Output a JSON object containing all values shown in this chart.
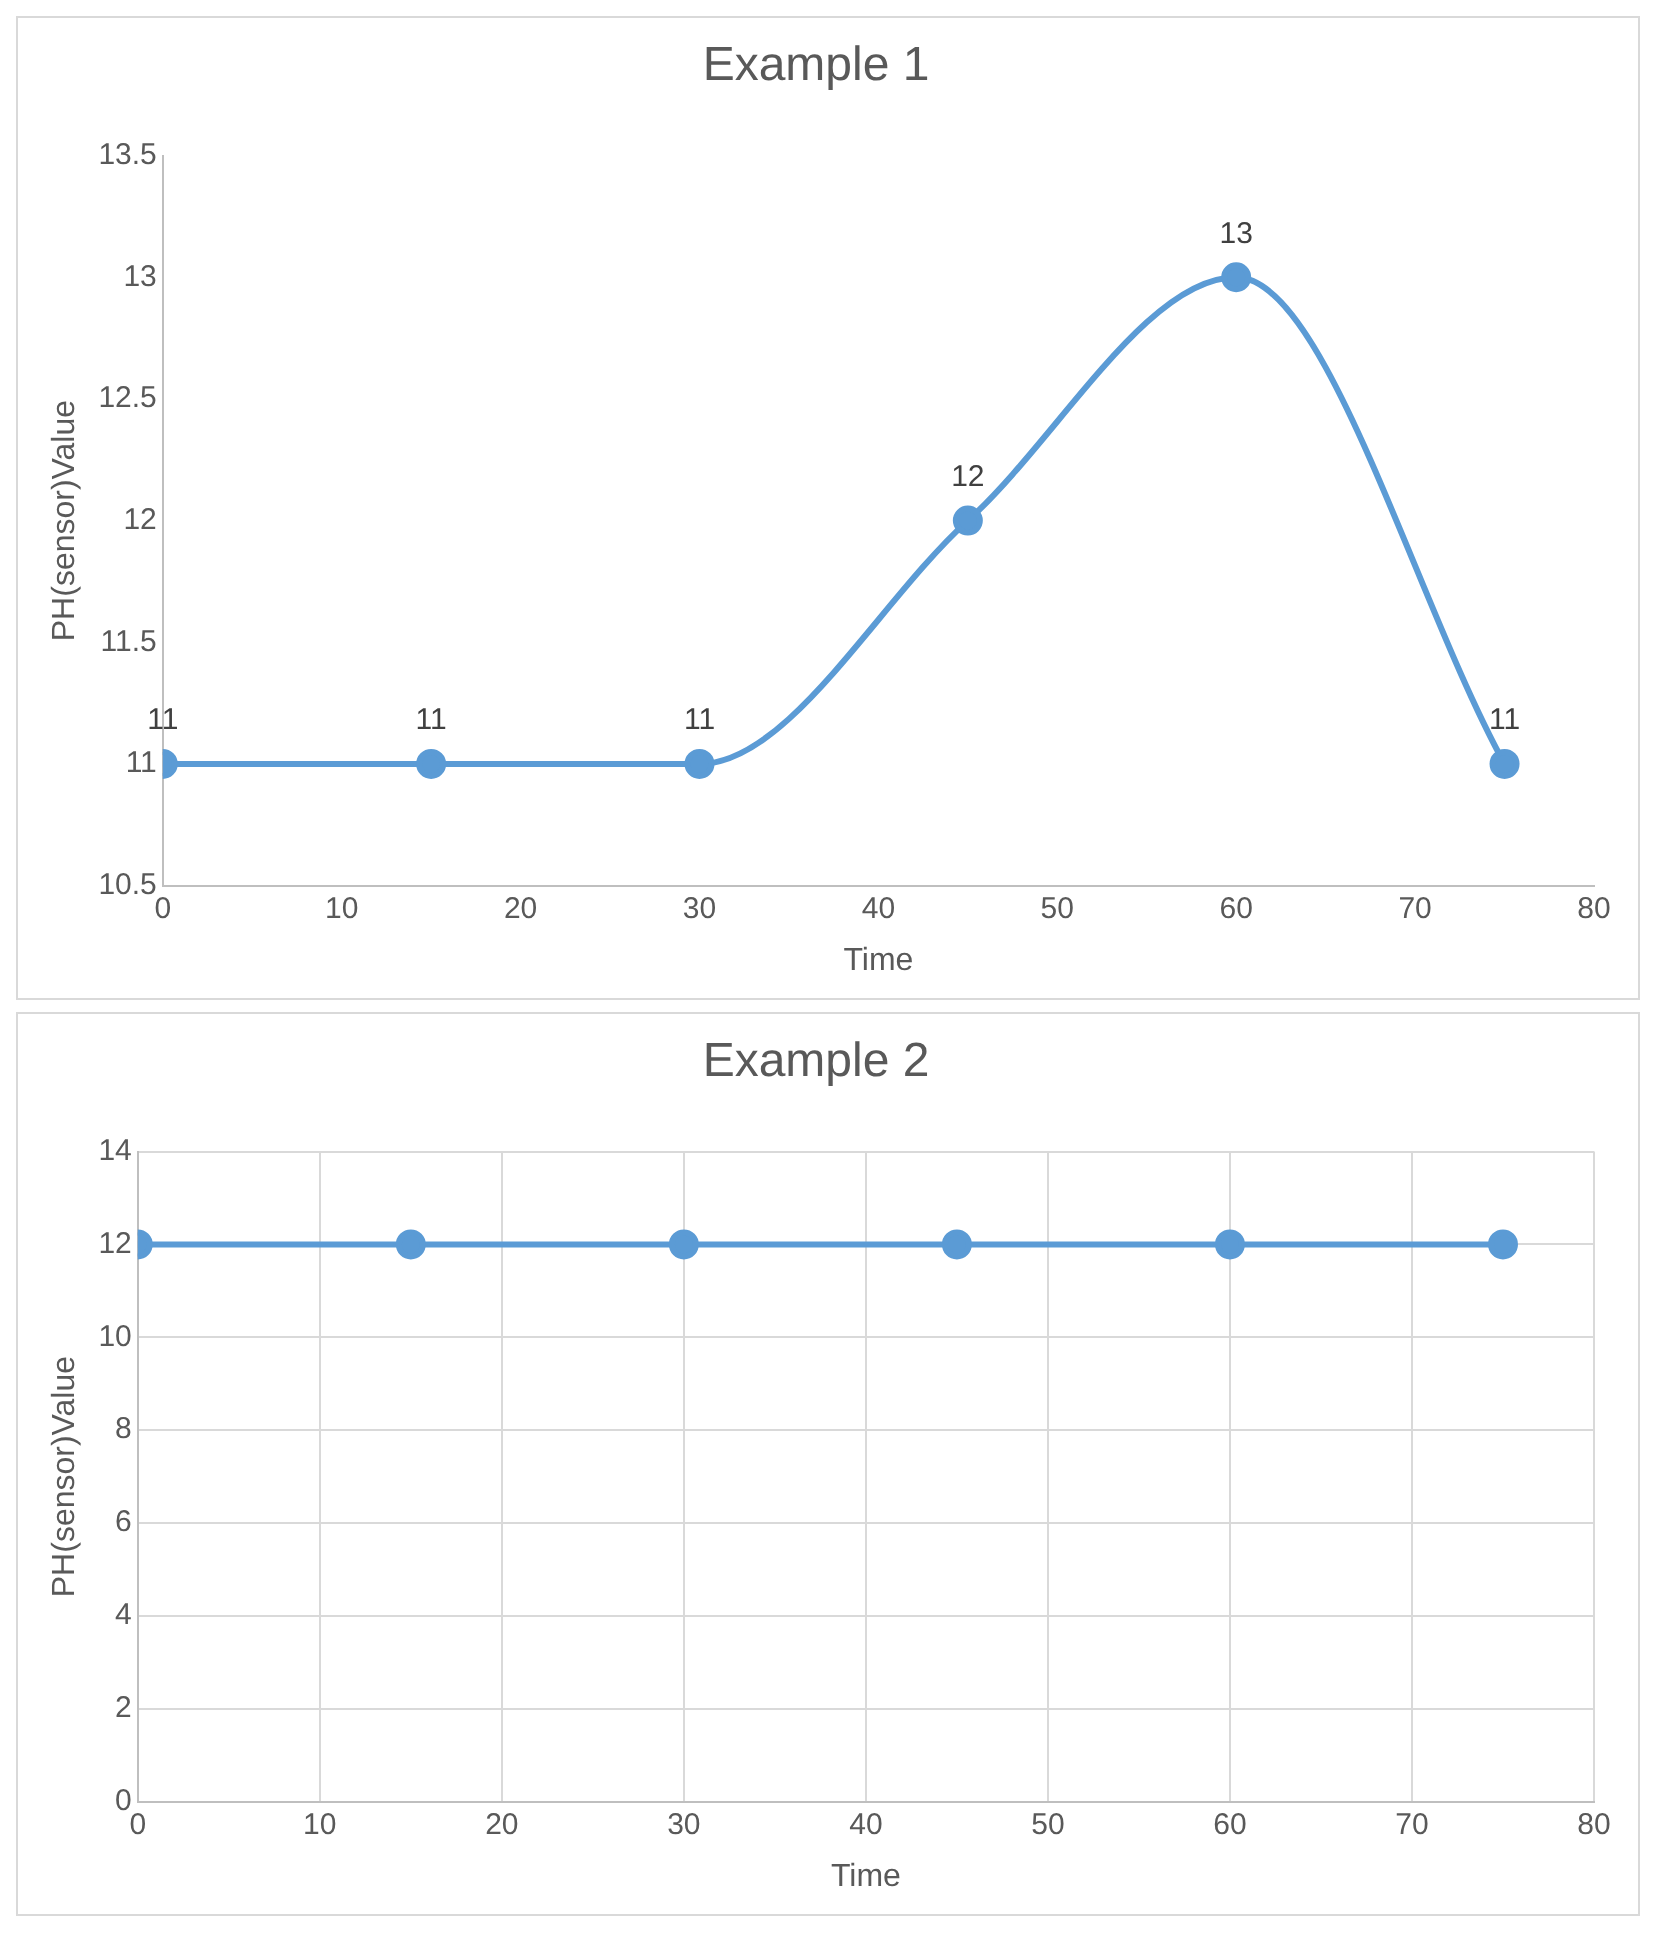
{
  "chart_data": [
    {
      "type": "line",
      "title": "Example 1",
      "xlabel": "Time",
      "ylabel": "PH(sensor)Value",
      "x": [
        0,
        15,
        30,
        45,
        60,
        75
      ],
      "series": [
        {
          "color": "#5b9bd5",
          "values": [
            11,
            11,
            11,
            12,
            13,
            11
          ]
        }
      ],
      "xlim": [
        0,
        80
      ],
      "xticks": [
        0,
        10,
        20,
        30,
        40,
        50,
        60,
        70,
        80
      ],
      "ylim": [
        10.5,
        13.5
      ],
      "yticks": [
        10.5,
        11,
        11.5,
        12,
        12.5,
        13,
        13.5
      ],
      "data_labels": true,
      "marker": "circle",
      "line_style": "solid",
      "grid": false
    },
    {
      "type": "line",
      "title": "Example 2",
      "xlabel": "Time",
      "ylabel": "PH(sensor)Value",
      "x": [
        0,
        15,
        30,
        45,
        60,
        75
      ],
      "series": [
        {
          "color": "#5b9bd5",
          "values": [
            12,
            12,
            12,
            12,
            12,
            12
          ]
        }
      ],
      "xlim": [
        0,
        80
      ],
      "xticks": [
        0,
        10,
        20,
        30,
        40,
        50,
        60,
        70,
        80
      ],
      "ylim": [
        0,
        14
      ],
      "yticks": [
        0,
        2,
        4,
        6,
        8,
        10,
        12,
        14
      ],
      "marker": "circle",
      "line_style": "solid",
      "grid": true
    }
  ]
}
